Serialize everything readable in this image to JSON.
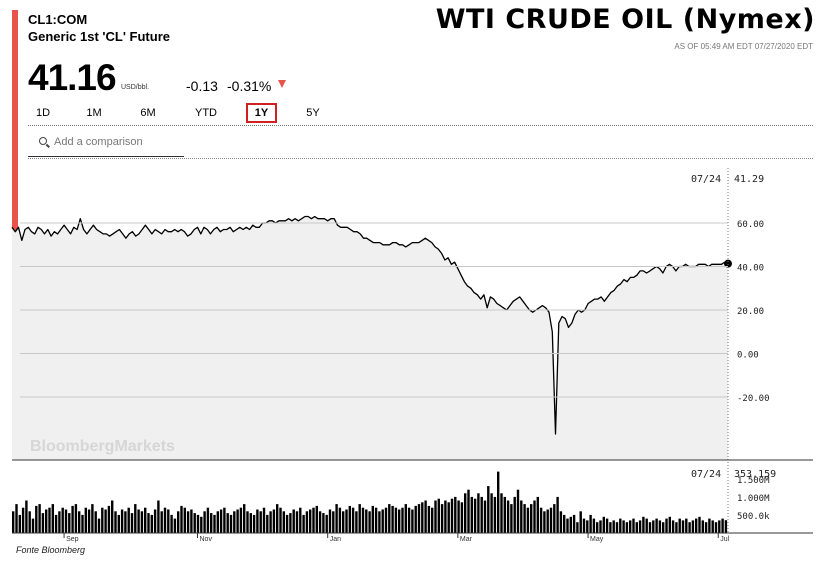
{
  "header": {
    "ticker": "CL1:COM",
    "name": "Generic 1st 'CL' Future",
    "big_title": "WTI CRUDE OIL (Nymex)",
    "as_of": "AS OF 05:49 AM EDT 07/27/2020 EDT",
    "price": "41.16",
    "unit": "USD/bbl.",
    "change": "-0.13",
    "change_pct": "-0.31%"
  },
  "ranges": [
    "1D",
    "1M",
    "6M",
    "YTD",
    "1Y",
    "5Y"
  ],
  "active_range": "1Y",
  "search": {
    "placeholder": "Add a comparison"
  },
  "watermark": "BloombergMarkets",
  "source": "Fonte Bloomberg",
  "colors": {
    "accent": "#e8534b",
    "line": "#000000",
    "area": "#f0f0f0",
    "active_border": "#d02020"
  },
  "chart_data": [
    {
      "type": "line",
      "title": "",
      "ylim": [
        -40,
        70
      ],
      "yticks": [
        "60.00",
        "40.00",
        "20.00",
        "0.00",
        "-20.00"
      ],
      "ytick_values": [
        60,
        40,
        20,
        0,
        -20
      ],
      "xticks": [
        "Sep",
        "Nov",
        "Jan",
        "Mar",
        "May",
        "Jul"
      ],
      "xtick_index": [
        16,
        57,
        97,
        137,
        177,
        217
      ],
      "last_label": {
        "date": "07/24",
        "value": "41.29"
      },
      "series": [
        {
          "values": [
            58,
            56,
            58,
            52,
            57,
            58,
            56,
            55,
            58,
            57,
            55,
            57,
            54,
            56,
            55,
            57,
            59,
            57,
            55,
            58,
            57,
            62,
            57,
            55,
            57,
            59,
            57,
            56,
            55,
            55,
            54,
            55,
            56,
            57,
            55,
            53,
            55,
            56,
            54,
            55,
            57,
            59,
            57,
            55,
            57,
            56,
            55,
            57,
            56,
            56,
            57,
            56,
            57,
            56,
            54,
            55,
            57,
            58,
            55,
            58,
            57,
            55,
            57,
            58,
            56,
            57,
            57,
            58,
            56,
            57,
            58,
            57,
            58,
            57,
            59,
            58,
            58,
            60,
            60,
            61,
            61,
            60,
            61,
            61,
            61,
            62,
            61,
            62,
            61,
            62,
            63,
            63,
            62,
            63,
            62,
            62,
            62,
            61,
            62,
            62,
            59,
            58,
            58,
            58,
            57,
            56,
            56,
            55,
            53,
            53,
            52,
            51,
            51,
            51,
            50,
            50,
            50,
            51,
            51,
            50,
            50,
            49,
            50,
            51,
            51,
            51,
            52,
            53,
            52,
            51,
            49,
            48,
            46,
            43,
            44,
            41,
            42,
            39,
            36,
            33,
            31,
            30,
            28,
            27,
            25,
            27,
            21,
            26,
            25,
            23,
            22,
            21,
            20,
            22,
            24,
            25,
            26,
            24,
            22,
            20,
            19,
            20,
            21,
            22,
            21,
            19,
            10,
            -37,
            14,
            17,
            16,
            12,
            14,
            18,
            20,
            19,
            20,
            23,
            24,
            25,
            25,
            26,
            24,
            26,
            28,
            29,
            31,
            32,
            34,
            33,
            35,
            35,
            36,
            38,
            38,
            37,
            38,
            39,
            40,
            39,
            37,
            40,
            41,
            40,
            38,
            40,
            40,
            41,
            40,
            40,
            40,
            41,
            41,
            41,
            40,
            41,
            41,
            41,
            41,
            42,
            41.3
          ]
        }
      ]
    },
    {
      "type": "bar",
      "title": "",
      "ylim": [
        0,
        1800000
      ],
      "yticks": [
        "1.500M",
        "1.000M",
        "500.0k"
      ],
      "ytick_values": [
        1500000,
        1000000,
        500000
      ],
      "last_label": {
        "date": "07/24",
        "value": "353,159"
      },
      "values": [
        600000,
        800000,
        500000,
        700000,
        900000,
        600000,
        400000,
        750000,
        800000,
        550000,
        650000,
        700000,
        800000,
        500000,
        600000,
        700000,
        650000,
        550000,
        750000,
        800000,
        600000,
        500000,
        700000,
        650000,
        800000,
        600000,
        400000,
        700000,
        650000,
        750000,
        900000,
        600000,
        500000,
        650000,
        600000,
        700000,
        550000,
        800000,
        650000,
        600000,
        700000,
        550000,
        500000,
        650000,
        900000,
        600000,
        700000,
        650000,
        500000,
        400000,
        600000,
        750000,
        700000,
        600000,
        650000,
        550000,
        500000,
        450000,
        600000,
        700000,
        550000,
        500000,
        600000,
        650000,
        700000,
        550000,
        500000,
        600000,
        650000,
        700000,
        800000,
        600000,
        550000,
        500000,
        650000,
        600000,
        700000,
        500000,
        600000,
        650000,
        800000,
        700000,
        600000,
        500000,
        550000,
        650000,
        600000,
        700000,
        500000,
        600000,
        650000,
        700000,
        750000,
        600000,
        550000,
        500000,
        650000,
        600000,
        800000,
        700000,
        600000,
        650000,
        750000,
        700000,
        600000,
        800000,
        700000,
        650000,
        600000,
        750000,
        700000,
        600000,
        650000,
        700000,
        800000,
        750000,
        700000,
        650000,
        700000,
        800000,
        700000,
        650000,
        750000,
        800000,
        850000,
        900000,
        750000,
        700000,
        900000,
        950000,
        800000,
        900000,
        850000,
        950000,
        1000000,
        900000,
        850000,
        1100000,
        1200000,
        1000000,
        950000,
        1100000,
        1000000,
        900000,
        1300000,
        1100000,
        1000000,
        1700000,
        1100000,
        1000000,
        900000,
        800000,
        1000000,
        1200000,
        900000,
        800000,
        700000,
        800000,
        900000,
        1000000,
        700000,
        600000,
        650000,
        700000,
        800000,
        1000000,
        600000,
        500000,
        400000,
        450000,
        500000,
        300000,
        600000,
        400000,
        350000,
        500000,
        400000,
        300000,
        350000,
        450000,
        400000,
        300000,
        350000,
        300000,
        400000,
        350000,
        300000,
        350000,
        400000,
        300000,
        350000,
        450000,
        400000,
        300000,
        350000,
        400000,
        350000,
        300000,
        400000,
        450000,
        350000,
        300000,
        400000,
        350000,
        400000,
        300000,
        350000,
        400000,
        450000,
        350000,
        300000,
        400000,
        350000,
        300000,
        350000,
        400000,
        353159
      ]
    }
  ]
}
